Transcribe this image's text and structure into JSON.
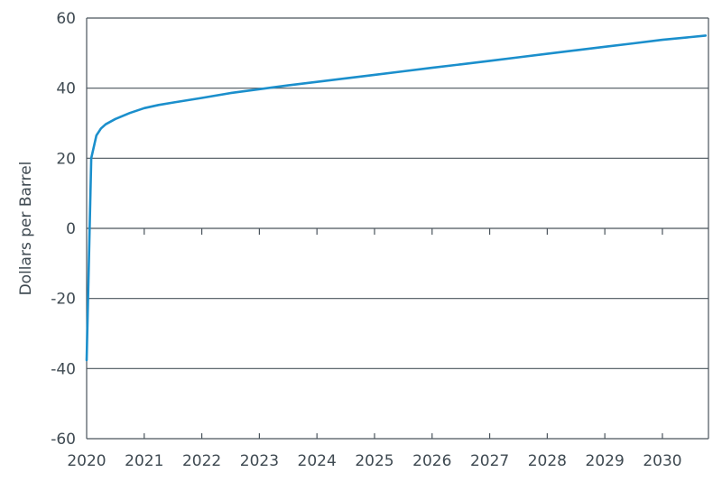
{
  "chart_data": {
    "type": "line",
    "title": "",
    "xlabel": "",
    "ylabel": "Dollars per Barrel",
    "xlim": [
      2020,
      2030.8
    ],
    "ylim": [
      -60,
      60
    ],
    "yticks": [
      60,
      40,
      20,
      0,
      -20,
      -40,
      -60
    ],
    "yticks_labels": [
      "60",
      "40",
      "20",
      "0",
      "-20",
      "-40",
      "-60"
    ],
    "xticks": [
      2020,
      2021,
      2022,
      2023,
      2024,
      2025,
      2026,
      2027,
      2028,
      2029,
      2030
    ],
    "xticks_labels": [
      "2020",
      "2021",
      "2022",
      "2023",
      "2024",
      "2025",
      "2026",
      "2027",
      "2028",
      "2029",
      "2030"
    ],
    "grid": "horizontal",
    "colors": {
      "line": "#1b8fcc",
      "grid": "#4a545c",
      "text": "#3f4a52"
    },
    "series": [
      {
        "x": [
          2020.0,
          2020.08,
          2020.17,
          2020.25,
          2020.33,
          2020.5,
          2020.75,
          2021.0,
          2021.25,
          2021.5,
          2022.0,
          2022.5,
          2023.0,
          2023.5,
          2024.0,
          2024.5,
          2025.0,
          2025.5,
          2026.0,
          2026.5,
          2027.0,
          2027.5,
          2028.0,
          2028.5,
          2029.0,
          2029.5,
          2030.0,
          2030.5,
          2030.75
        ],
        "y": [
          -37.6,
          20,
          26.5,
          28.5,
          29.7,
          31.2,
          32.9,
          34.3,
          35.2,
          35.9,
          37.2,
          38.6,
          39.7,
          40.8,
          41.8,
          42.8,
          43.8,
          44.8,
          45.8,
          46.8,
          47.8,
          48.8,
          49.8,
          50.8,
          51.8,
          52.8,
          53.8,
          54.6,
          55.0
        ]
      }
    ]
  }
}
